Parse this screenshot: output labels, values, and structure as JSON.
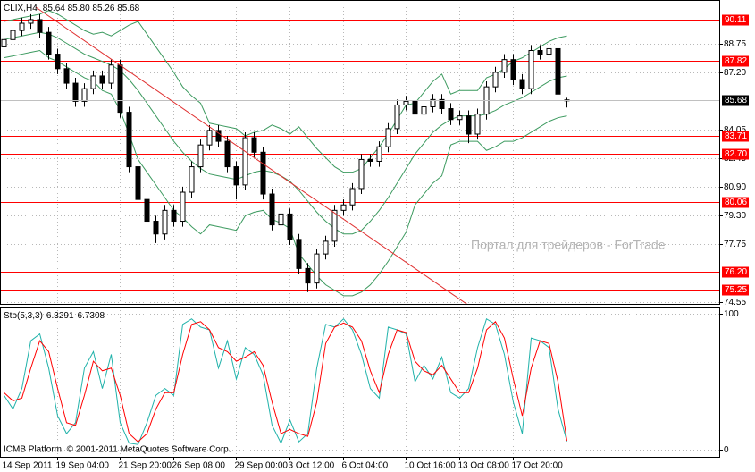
{
  "chart_data": [
    {
      "type": "candlestick",
      "title": "CLIX,H4",
      "last_bar": "85.64 85.80 85.26 85.68",
      "watermark": "Портал для трейдеров - ForTrade",
      "footer": "ICMB Platform, © 2001-2011 MetaQuotes Software Corp.",
      "categories": [
        "14 Sep 2011",
        null,
        null,
        null,
        null,
        null,
        "19 Sep 04:00",
        null,
        null,
        null,
        null,
        null,
        null,
        "21 Sep 20:00",
        null,
        null,
        null,
        null,
        null,
        "26 Sep 08:00",
        null,
        null,
        null,
        null,
        null,
        null,
        "29 Sep 00:00",
        null,
        null,
        null,
        null,
        null,
        "3 Oct 12:00",
        null,
        null,
        null,
        null,
        null,
        "6 Oct 04:00",
        null,
        null,
        null,
        null,
        null,
        null,
        "10 Oct 16:00",
        null,
        null,
        null,
        null,
        null,
        "13 Oct 08:00",
        null,
        null,
        null,
        null,
        null,
        "17 Oct 20:00",
        null,
        null,
        null,
        null,
        null,
        null
      ],
      "open": [
        88.6,
        89.0,
        89.5,
        89.9,
        90.1,
        89.4,
        88.2,
        87.4,
        86.6,
        85.6,
        86.3,
        87.0,
        86.6,
        87.6,
        85.0,
        82.0,
        80.2,
        79.0,
        78.3,
        79.6,
        79.0,
        80.6,
        82.0,
        83.2,
        84.0,
        83.4,
        82.0,
        81.0,
        83.6,
        82.8,
        80.5,
        78.8,
        79.4,
        78.0,
        76.4,
        75.6,
        77.2,
        77.9,
        79.6,
        79.9,
        80.8,
        82.4,
        82.3,
        83.1,
        84.1,
        85.4,
        85.6,
        84.9,
        85.3,
        85.7,
        85.2,
        84.6,
        84.8,
        83.8,
        84.9,
        86.4,
        87.2,
        87.9,
        86.8,
        86.3,
        88.4,
        88.2,
        88.5,
        85.64
      ],
      "high": [
        89.3,
        89.8,
        90.2,
        90.4,
        90.4,
        89.7,
        88.5,
        87.7,
        86.9,
        86.6,
        87.3,
        87.3,
        87.9,
        87.9,
        85.3,
        82.3,
        80.5,
        79.3,
        79.9,
        79.9,
        80.9,
        82.3,
        83.5,
        84.3,
        84.3,
        83.7,
        82.3,
        83.9,
        83.9,
        83.1,
        80.8,
        79.7,
        79.7,
        78.3,
        76.7,
        77.5,
        78.2,
        79.9,
        80.2,
        81.1,
        82.7,
        82.7,
        83.4,
        84.4,
        85.7,
        85.9,
        85.9,
        85.6,
        86.0,
        86.0,
        85.5,
        85.1,
        85.1,
        85.2,
        86.7,
        87.5,
        88.2,
        88.2,
        87.1,
        88.7,
        88.7,
        89.2,
        88.8,
        85.8
      ],
      "low": [
        88.3,
        88.7,
        89.2,
        89.6,
        89.1,
        87.9,
        87.1,
        86.3,
        85.3,
        85.3,
        86.0,
        86.3,
        86.3,
        84.7,
        81.7,
        79.9,
        78.7,
        77.8,
        78.0,
        78.7,
        78.7,
        80.3,
        81.7,
        82.9,
        83.1,
        81.7,
        80.2,
        80.7,
        82.5,
        80.2,
        78.5,
        78.5,
        77.7,
        76.1,
        75.1,
        75.3,
        76.9,
        77.6,
        79.3,
        79.6,
        80.5,
        82.0,
        82.0,
        82.8,
        83.8,
        85.1,
        84.6,
        84.6,
        85.0,
        84.9,
        84.3,
        84.3,
        83.3,
        83.5,
        84.6,
        86.1,
        86.9,
        86.5,
        86.0,
        86.0,
        87.9,
        87.9,
        85.7,
        85.26
      ],
      "close": [
        89.0,
        89.5,
        89.9,
        90.1,
        89.4,
        88.2,
        87.4,
        86.6,
        85.6,
        86.3,
        87.0,
        86.6,
        87.6,
        85.0,
        82.0,
        80.2,
        79.0,
        78.3,
        79.6,
        79.0,
        80.6,
        82.0,
        83.2,
        84.0,
        83.4,
        82.0,
        81.0,
        83.6,
        82.8,
        80.5,
        78.8,
        79.4,
        78.0,
        76.4,
        75.6,
        77.2,
        77.9,
        79.6,
        79.9,
        80.8,
        82.4,
        82.3,
        83.1,
        84.1,
        85.4,
        85.6,
        84.9,
        85.3,
        85.7,
        85.2,
        84.6,
        84.8,
        83.8,
        84.9,
        86.4,
        87.2,
        87.9,
        86.8,
        86.3,
        88.4,
        88.2,
        88.5,
        86.0,
        85.68
      ],
      "overlays": [
        {
          "color": "#3c9a5f",
          "values": [
            90.0,
            90.1,
            90.2,
            90.3,
            90.4,
            90.6,
            90.4,
            90.1,
            89.8,
            89.5,
            89.3,
            89.4,
            89.2,
            89.5,
            89.8,
            90.0,
            89.3,
            88.6,
            87.9,
            87.2,
            86.4,
            85.9,
            85.5,
            84.4,
            84.3,
            84.2,
            84.1,
            83.7,
            83.9,
            84.0,
            84.3,
            84.1,
            83.8,
            84.2,
            83.6,
            83.0,
            82.5,
            82.0,
            81.7,
            81.7,
            81.9,
            82.5,
            83.1,
            83.8,
            84.6,
            85.4,
            85.5,
            86.1,
            86.7,
            87.1,
            86.0,
            86.2,
            86.2,
            86.2,
            86.9,
            87.1,
            87.4,
            87.8,
            88.0,
            88.3,
            88.6,
            88.9,
            89.1,
            89.2
          ]
        },
        {
          "color": "#3c9a5f",
          "values": [
            89.0,
            89.1,
            89.2,
            89.3,
            89.4,
            89.3,
            89.1,
            88.8,
            88.5,
            88.2,
            88.0,
            87.8,
            87.6,
            87.3,
            86.8,
            86.2,
            85.5,
            84.8,
            84.1,
            83.4,
            82.8,
            82.3,
            81.9,
            81.6,
            81.5,
            81.4,
            81.3,
            81.5,
            81.7,
            81.8,
            81.7,
            81.5,
            81.2,
            80.7,
            80.1,
            79.5,
            79.0,
            78.6,
            78.3,
            78.3,
            78.5,
            79.0,
            79.6,
            80.3,
            81.1,
            81.9,
            82.7,
            83.3,
            83.9,
            84.3,
            84.6,
            84.8,
            84.8,
            84.8,
            84.9,
            85.1,
            85.4,
            85.6,
            85.8,
            86.1,
            86.4,
            86.7,
            86.9,
            87.0
          ]
        },
        {
          "color": "#3c9a5f",
          "values": [
            88.0,
            88.1,
            88.2,
            88.3,
            88.4,
            88.0,
            87.8,
            87.5,
            87.2,
            86.9,
            86.7,
            86.2,
            86.0,
            85.1,
            83.8,
            82.4,
            81.7,
            81.0,
            80.3,
            79.6,
            79.2,
            78.7,
            78.3,
            78.8,
            78.7,
            78.6,
            78.5,
            79.3,
            79.5,
            79.6,
            79.1,
            78.9,
            78.6,
            77.2,
            76.6,
            76.0,
            75.5,
            75.2,
            74.9,
            74.9,
            75.1,
            75.5,
            76.1,
            76.8,
            77.6,
            78.4,
            79.9,
            80.5,
            81.1,
            81.5,
            83.2,
            83.4,
            83.4,
            83.4,
            82.9,
            83.1,
            83.4,
            83.4,
            83.6,
            83.9,
            84.2,
            84.5,
            84.7,
            84.8
          ]
        }
      ],
      "hlines": [
        90.11,
        87.82,
        83.71,
        {
          "value": 82.7,
          "label": "82.70"
        },
        80.06,
        {
          "value": 76.2,
          "label": "76.20"
        },
        75.25
      ],
      "hline_color": "#ff0000",
      "last_price": 85.68,
      "ylim": [
        74.45,
        91.18
      ],
      "yticks": [
        88.75,
        {
          "value": 87.2,
          "label": "87.20"
        },
        84.05,
        82.45,
        {
          "value": 80.9,
          "label": "80.90"
        },
        {
          "value": 79.3,
          "label": "79.30"
        },
        77.75,
        74.55
      ],
      "grid": true
    },
    {
      "type": "line",
      "title": "Sto(5,3,3)",
      "series": [
        {
          "color": "#20b2aa",
          "values": [
            40,
            30,
            45,
            80,
            85,
            60,
            25,
            12,
            20,
            60,
            72,
            45,
            70,
            20,
            5,
            4,
            20,
            40,
            45,
            40,
            92,
            96,
            90,
            88,
            60,
            80,
            52,
            75,
            70,
            55,
            18,
            5,
            22,
            6,
            12,
            60,
            92,
            90,
            96,
            88,
            70,
            45,
            38,
            90,
            88,
            85,
            50,
            62,
            52,
            68,
            42,
            38,
            45,
            75,
            96,
            92,
            70,
            35,
            12,
            82,
            80,
            75,
            30,
            6.3291
          ]
        },
        {
          "color": "#ff0000",
          "values": [
            42,
            36,
            38,
            60,
            80,
            72,
            45,
            20,
            18,
            40,
            65,
            58,
            60,
            40,
            12,
            6,
            12,
            30,
            42,
            42,
            70,
            92,
            94,
            88,
            75,
            72,
            65,
            68,
            72,
            62,
            35,
            12,
            15,
            12,
            10,
            35,
            78,
            90,
            93,
            90,
            80,
            58,
            42,
            70,
            88,
            86,
            65,
            58,
            55,
            62,
            52,
            42,
            42,
            60,
            88,
            94,
            82,
            52,
            25,
            60,
            80,
            78,
            50,
            6.7308
          ]
        }
      ],
      "ylim": [
        -5,
        105
      ],
      "yticks": [
        100,
        0
      ],
      "grid": true
    }
  ]
}
